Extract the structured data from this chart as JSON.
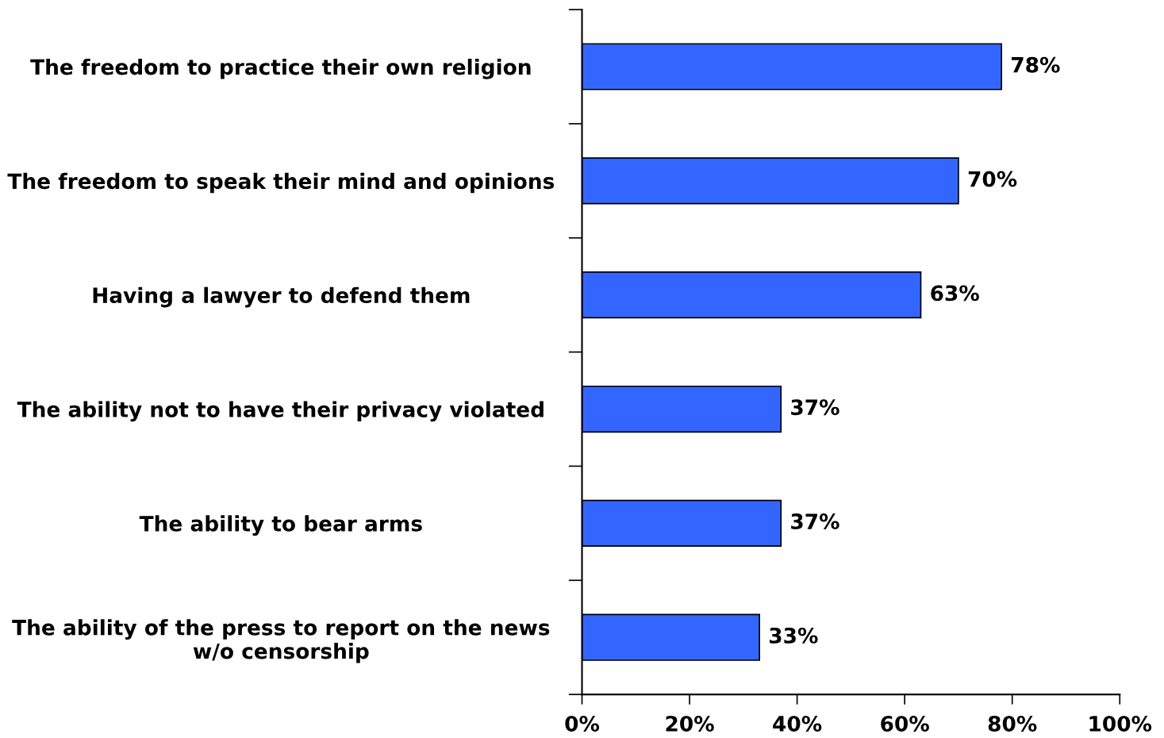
{
  "chart_data": {
    "type": "bar",
    "orientation": "horizontal",
    "categories": [
      "The freedom to practice their own religion",
      "The freedom to speak their mind and opinions",
      "Having a lawyer to defend them",
      "The ability not to have their privacy violated",
      "The ability to bear arms",
      "The ability of the press to report on the news w/o censorship"
    ],
    "values": [
      78,
      70,
      63,
      37,
      37,
      33
    ],
    "value_labels": [
      "78%",
      "70%",
      "63%",
      "37%",
      "37%",
      "33%"
    ],
    "color": "#3366ff",
    "xlim": [
      0,
      100
    ],
    "xticks": [
      {
        "value": 0,
        "label": "0%"
      },
      {
        "value": 20,
        "label": "20%"
      },
      {
        "value": 40,
        "label": "40%"
      },
      {
        "value": 60,
        "label": "60%"
      },
      {
        "value": 80,
        "label": "80%"
      },
      {
        "value": 100,
        "label": "100%"
      }
    ],
    "grid": false,
    "legend": false
  }
}
